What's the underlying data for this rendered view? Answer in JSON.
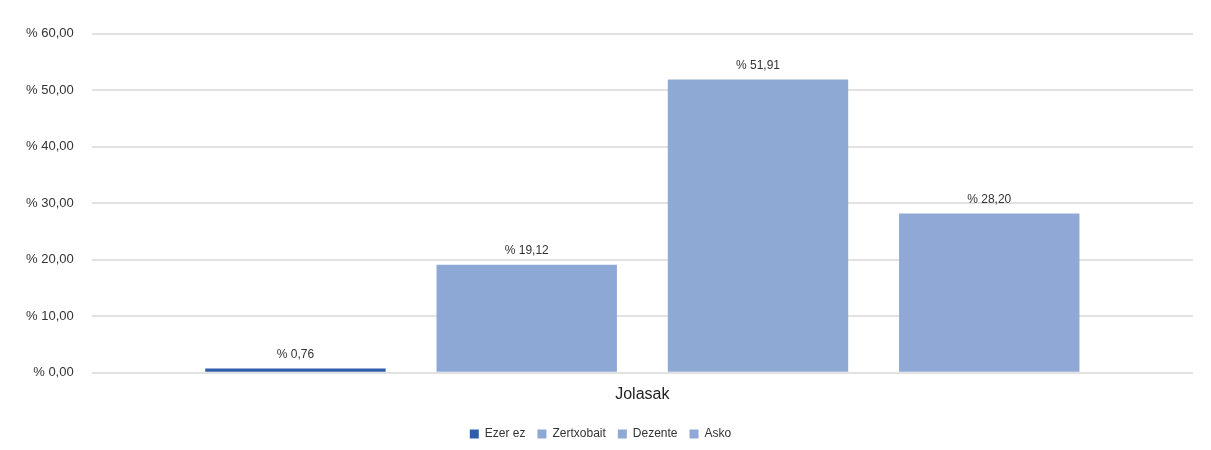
{
  "chart_data": {
    "type": "bar",
    "categories": [
      "Jolasak"
    ],
    "series": [
      {
        "name": "Ezer ez",
        "color": "#2f5ea8",
        "values": [
          0.76
        ],
        "value_labels": [
          "% 0,76"
        ]
      },
      {
        "name": "Zertxobait",
        "color": "#8ea8d6",
        "values": [
          19.12
        ],
        "value_labels": [
          "% 19,12"
        ]
      },
      {
        "name": "Dezente",
        "color": "#8fa9d5",
        "values": [
          51.91
        ],
        "value_labels": [
          "% 51,91"
        ]
      },
      {
        "name": "Asko",
        "color": "#90a8d6",
        "values": [
          28.2
        ],
        "value_labels": [
          "% 28,20"
        ]
      }
    ],
    "ylim": [
      0,
      60
    ],
    "yticks": [
      {
        "value": 0,
        "label": "% 0,00"
      },
      {
        "value": 10,
        "label": "% 10,00"
      },
      {
        "value": 20,
        "label": "% 20,00"
      },
      {
        "value": 30,
        "label": "% 30,00"
      },
      {
        "value": 40,
        "label": "% 40,00"
      },
      {
        "value": 50,
        "label": "% 50,00"
      },
      {
        "value": 60,
        "label": "% 60,00"
      }
    ],
    "grid": "y",
    "legend": "bottom"
  }
}
